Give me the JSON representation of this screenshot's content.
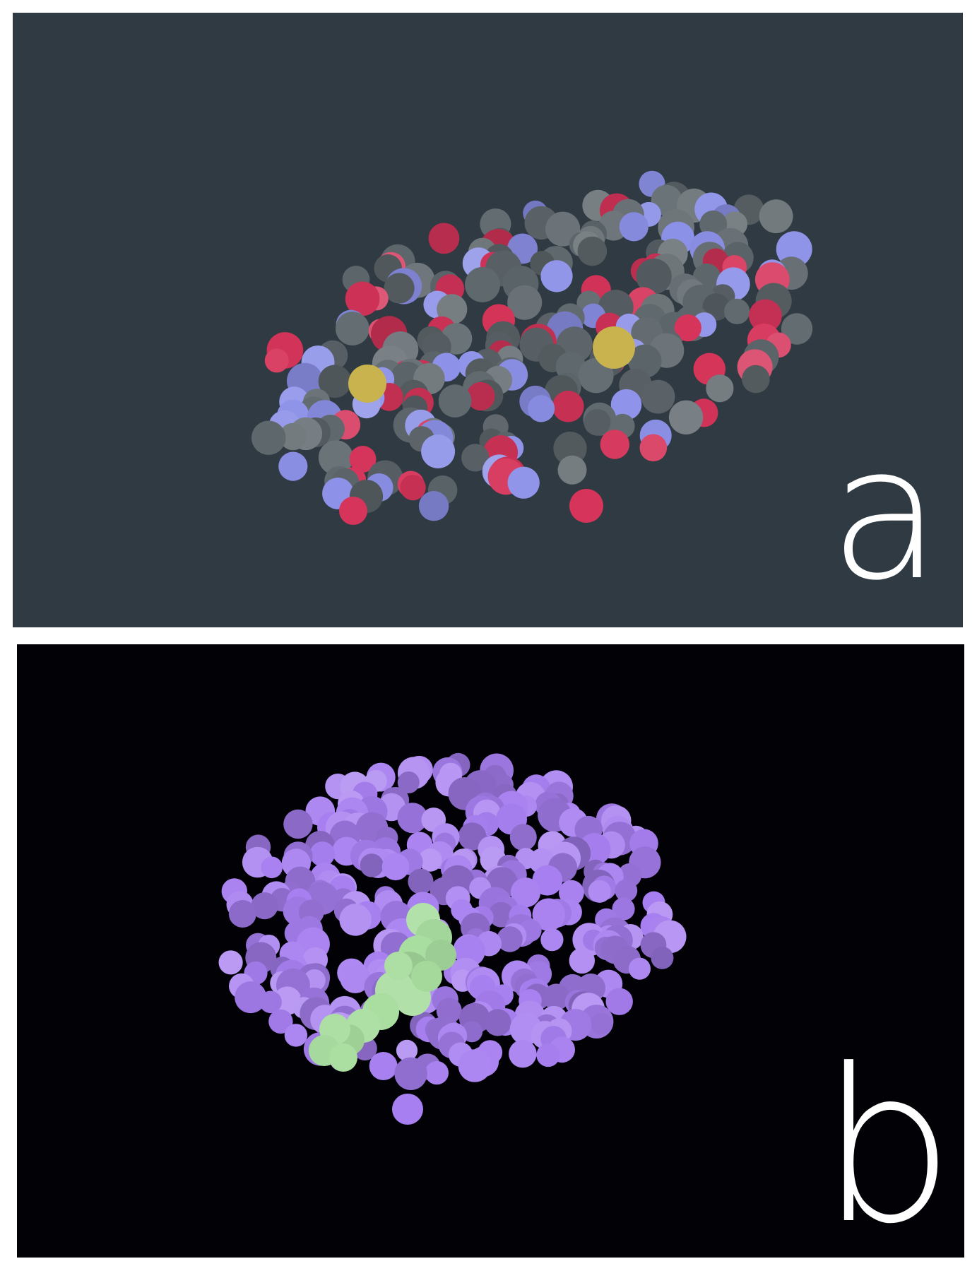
{
  "panels": [
    {
      "label": "a",
      "background": "#303a43",
      "palette": {
        "carbon": "#5f686d",
        "oxygen": "#d6345a",
        "nitrogen": "#8c91e8",
        "sulfur": "#c9b34e"
      }
    },
    {
      "label": "b",
      "background": "#020206",
      "palette": {
        "protein": "#a77ff0",
        "ligand": "#a9dea0"
      }
    }
  ]
}
